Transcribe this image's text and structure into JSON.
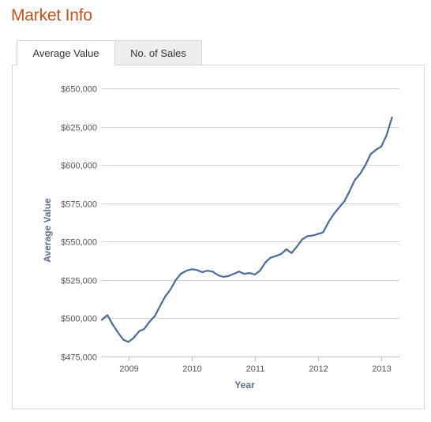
{
  "header": {
    "title": "Market Info"
  },
  "tabs": [
    {
      "label": "Average Value",
      "active": true
    },
    {
      "label": "No. of Sales",
      "active": false
    }
  ],
  "colors": {
    "title": "#c5501c",
    "series": "#4a6a9b",
    "grid": "#d0d0d0",
    "axis_title": "#5b6f8a"
  },
  "chart_data": {
    "type": "line",
    "title": "",
    "xlabel": "Year",
    "ylabel": "Average Value",
    "ylim": [
      475000,
      650000
    ],
    "xlim": [
      2008.58,
      2013.25
    ],
    "grid": "horizontal",
    "y_ticks": [
      {
        "value": 475000,
        "label": "$475,000"
      },
      {
        "value": 500000,
        "label": "$500,000"
      },
      {
        "value": 525000,
        "label": "$525,000"
      },
      {
        "value": 550000,
        "label": "$550,000"
      },
      {
        "value": 575000,
        "label": "$575,000"
      },
      {
        "value": 600000,
        "label": "$600,000"
      },
      {
        "value": 625000,
        "label": "$625,000"
      },
      {
        "value": 650000,
        "label": "$650,000"
      }
    ],
    "x_ticks": [
      {
        "value": 2009,
        "label": "2009"
      },
      {
        "value": 2010,
        "label": "2010"
      },
      {
        "value": 2011,
        "label": "2011"
      },
      {
        "value": 2012,
        "label": "2012"
      },
      {
        "value": 2013,
        "label": "2013"
      }
    ],
    "series": [
      {
        "x": [
          2008.58,
          2008.67,
          2008.75,
          2008.83,
          2008.92,
          2009.0,
          2009.08,
          2009.17,
          2009.25,
          2009.33,
          2009.42,
          2009.5,
          2009.58,
          2009.67,
          2009.75,
          2009.83,
          2009.92,
          2010.0,
          2010.08,
          2010.17,
          2010.25,
          2010.33,
          2010.42,
          2010.5,
          2010.58,
          2010.67,
          2010.75,
          2010.83,
          2010.92,
          2011.0,
          2011.08,
          2011.17,
          2011.25,
          2011.33,
          2011.42,
          2011.5,
          2011.58,
          2011.67,
          2011.75,
          2011.83,
          2011.92,
          2012.0,
          2012.08,
          2012.17,
          2012.25,
          2012.33,
          2012.42,
          2012.5,
          2012.58,
          2012.67,
          2012.75,
          2012.83,
          2012.92,
          2013.0,
          2013.08,
          2013.17
        ],
        "values": [
          499000,
          502000,
          496000,
          491000,
          486000,
          484500,
          487000,
          491500,
          493000,
          497500,
          501500,
          508000,
          514000,
          519000,
          525000,
          529000,
          531000,
          532000,
          531500,
          530000,
          531000,
          530500,
          528000,
          527000,
          527500,
          529000,
          530500,
          529000,
          529500,
          528500,
          531000,
          536500,
          539500,
          540500,
          542000,
          545000,
          542500,
          547000,
          551500,
          553500,
          554000,
          555000,
          556000,
          563000,
          568000,
          572000,
          576500,
          583000,
          590000,
          594500,
          600000,
          607000,
          610000,
          612000,
          619000,
          631000
        ]
      }
    ]
  }
}
